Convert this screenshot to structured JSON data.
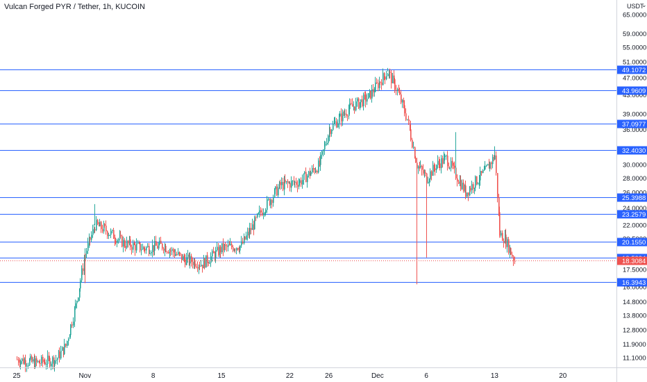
{
  "header": {
    "title": "Vulcan Forged PYR / Tether, 1h, KUCOIN",
    "currency": "USDT"
  },
  "colors": {
    "level_line": "#2962ff",
    "up": "#26a69a",
    "down": "#ef5350",
    "current_price": "#ef5350",
    "axis_border": "#d1d4dc"
  },
  "chart_data": {
    "type": "candlestick",
    "title": "Vulcan Forged PYR / Tether, 1h, KUCOIN",
    "y_scale": "log",
    "ylim": [
      10.6,
      80
    ],
    "y_ticks": [
      "65.0000",
      "59.0000",
      "55.0000",
      "51.0000",
      "47.0000",
      "43.0000",
      "39.0000",
      "36.0000",
      "32.0000",
      "30.0000",
      "28.0000",
      "26.0000",
      "24.0000",
      "22.0000",
      "20.5000",
      "17.5000",
      "16.0000",
      "14.8000",
      "13.8000",
      "12.8000",
      "11.9000",
      "11.1000"
    ],
    "x_ticks": [
      "25",
      "Nov",
      "8",
      "15",
      "22",
      "26",
      "Dec",
      "6",
      "13",
      "20"
    ],
    "horizontal_levels": [
      "49.1072",
      "43.9609",
      "37.0977",
      "32.4030",
      "25.3988",
      "23.2579",
      "20.1550",
      "18.5834",
      "16.3943"
    ],
    "current_price": "18.3084",
    "price_path": [
      {
        "date": "Oct 25",
        "price": 11.0
      },
      {
        "date": "Oct 27",
        "price": 10.8
      },
      {
        "date": "Oct 29",
        "price": 11.0
      },
      {
        "date": "Oct 30",
        "price": 11.8
      },
      {
        "date": "Oct 31",
        "price": 14.5
      },
      {
        "date": "Nov 1",
        "price": 19.0
      },
      {
        "date": "Nov 2",
        "price": 22.0
      },
      {
        "date": "Nov 3",
        "price": 21.5
      },
      {
        "date": "Nov 5",
        "price": 20.0
      },
      {
        "date": "Nov 7",
        "price": 19.5
      },
      {
        "date": "Nov 9",
        "price": 19.8
      },
      {
        "date": "Nov 11",
        "price": 18.5
      },
      {
        "date": "Nov 13",
        "price": 18.0
      },
      {
        "date": "Nov 15",
        "price": 19.5
      },
      {
        "date": "Nov 17",
        "price": 19.8
      },
      {
        "date": "Nov 19",
        "price": 23.5
      },
      {
        "date": "Nov 21",
        "price": 27.0
      },
      {
        "date": "Nov 23",
        "price": 27.5
      },
      {
        "date": "Nov 25",
        "price": 30.0
      },
      {
        "date": "Nov 26",
        "price": 36.0
      },
      {
        "date": "Nov 28",
        "price": 40.0
      },
      {
        "date": "Nov 30",
        "price": 42.5
      },
      {
        "date": "Dec 1",
        "price": 45.5
      },
      {
        "date": "Dec 2",
        "price": 48.5
      },
      {
        "date": "Dec 3",
        "price": 44.0
      },
      {
        "date": "Dec 4",
        "price": 38.0
      },
      {
        "date": "Dec 5",
        "price": 30.0
      },
      {
        "date": "Dec 6",
        "price": 28.0
      },
      {
        "date": "Dec 7",
        "price": 30.0
      },
      {
        "date": "Dec 8",
        "price": 31.0
      },
      {
        "date": "Dec 9",
        "price": 28.5
      },
      {
        "date": "Dec 10",
        "price": 26.0
      },
      {
        "date": "Dec 11",
        "price": 27.5
      },
      {
        "date": "Dec 12",
        "price": 29.0
      },
      {
        "date": "Dec 13",
        "price": 31.5
      },
      {
        "date": "Dec 13.5",
        "price": 21.0
      },
      {
        "date": "Dec 14",
        "price": 20.5
      },
      {
        "date": "Dec 15",
        "price": 18.3
      }
    ],
    "wicks": [
      {
        "date": "Nov 1",
        "low": 16.3
      },
      {
        "date": "Nov 2",
        "high": 24.5
      },
      {
        "date": "Dec 2",
        "high": 49.4
      },
      {
        "date": "Dec 5",
        "low": 16.2
      },
      {
        "date": "Dec 6",
        "low": 18.6
      },
      {
        "date": "Dec 9",
        "high": 35.5
      },
      {
        "date": "Dec 13",
        "high": 33.0
      }
    ]
  }
}
